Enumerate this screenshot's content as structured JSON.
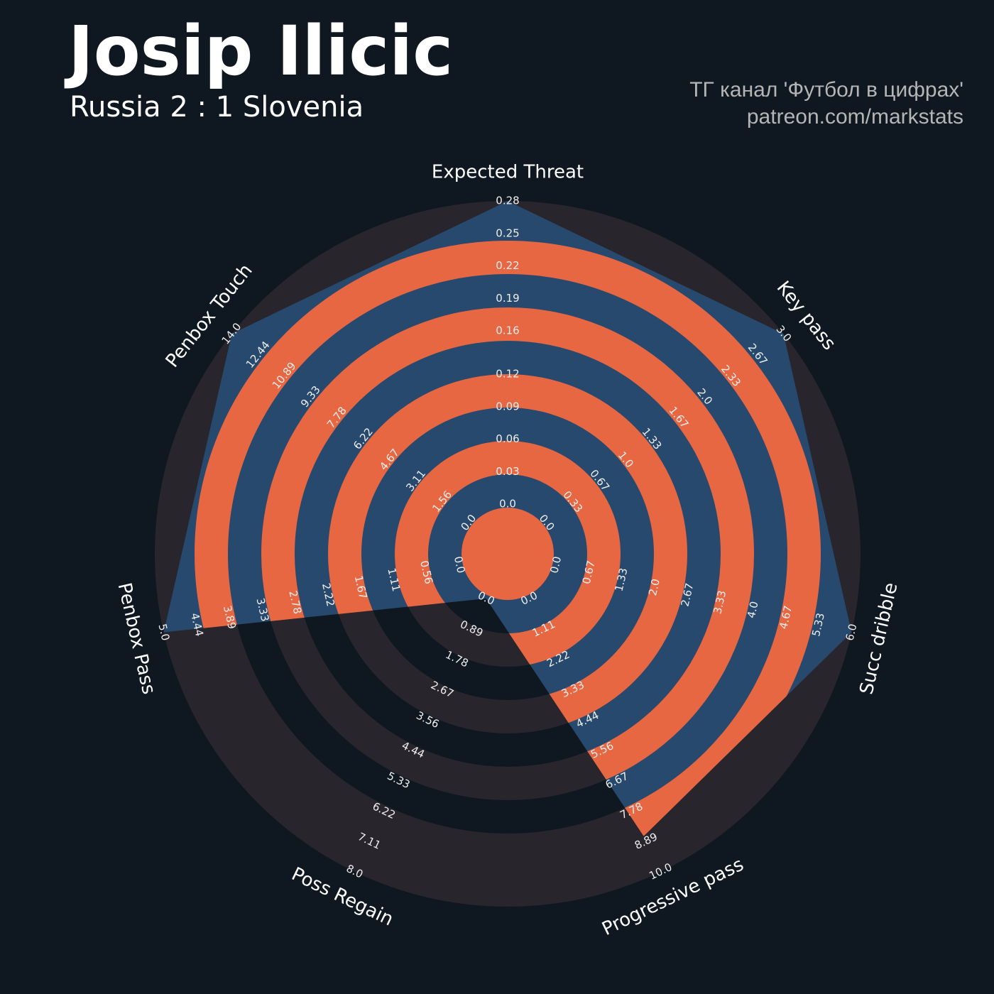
{
  "chart_data": {
    "type": "radar",
    "title": "Josip Ilicic",
    "subtitle": "Russia 2 : 1 Slovenia",
    "credits": [
      "ТГ канал 'Футбол в цифрах'",
      "patreon.com/markstats"
    ],
    "axes": [
      {
        "name": "Expected Threat",
        "lim": [
          0,
          0.28
        ],
        "ticks": [
          {
            "value": 0,
            "label": "0.0"
          },
          0.03,
          0.06,
          0.09,
          0.12,
          0.16,
          0.19,
          0.22,
          0.25,
          0.28
        ]
      },
      {
        "name": "Key pass",
        "lim": [
          0,
          3
        ],
        "ticks": [
          {
            "value": 0,
            "label": "0.0"
          },
          0.33,
          0.67,
          {
            "value": 1,
            "label": "1.0"
          },
          1.33,
          1.67,
          {
            "value": 2,
            "label": "2.0"
          },
          2.33,
          2.67,
          {
            "value": 3,
            "label": "3.0"
          }
        ]
      },
      {
        "name": "Succ dribble",
        "lim": [
          0,
          6
        ],
        "ticks": [
          {
            "value": 0,
            "label": "0.0"
          },
          0.67,
          1.33,
          {
            "value": 2,
            "label": "2.0"
          },
          2.67,
          3.33,
          {
            "value": 4,
            "label": "4.0"
          },
          4.67,
          5.33,
          {
            "value": 6,
            "label": "6.0"
          }
        ]
      },
      {
        "name": "Progressive pass",
        "lim": [
          0,
          10
        ],
        "ticks": [
          {
            "value": 0,
            "label": "0.0"
          },
          1.11,
          2.22,
          3.33,
          4.44,
          5.56,
          6.67,
          7.78,
          8.89,
          {
            "value": 10,
            "label": "10.0"
          }
        ]
      },
      {
        "name": "Poss Regain",
        "lim": [
          0,
          8
        ],
        "ticks": [
          {
            "value": 0,
            "label": "0.0"
          },
          0.89,
          1.78,
          2.67,
          3.56,
          4.44,
          5.33,
          6.22,
          7.11,
          {
            "value": 8,
            "label": "8.0"
          }
        ]
      },
      {
        "name": "Penbox Pass",
        "lim": [
          0,
          5
        ],
        "ticks": [
          {
            "value": 0,
            "label": "0.0"
          },
          0.56,
          1.11,
          1.67,
          2.22,
          2.78,
          3.33,
          3.89,
          4.44,
          {
            "value": 5,
            "label": "5.0"
          }
        ]
      },
      {
        "name": "Penbox Touch",
        "lim": [
          0,
          14
        ],
        "ticks": [
          {
            "value": 0,
            "label": "0.0"
          },
          1.56,
          3.11,
          4.67,
          6.22,
          7.78,
          9.33,
          10.89,
          12.44,
          {
            "value": 14,
            "label": "14.0"
          }
        ]
      }
    ],
    "values": [
      0.28,
      3,
      6,
      8.7,
      0,
      5,
      14
    ],
    "color": "#27496d",
    "ring_color": "#e76742",
    "background_ring_color": "#28252c"
  }
}
